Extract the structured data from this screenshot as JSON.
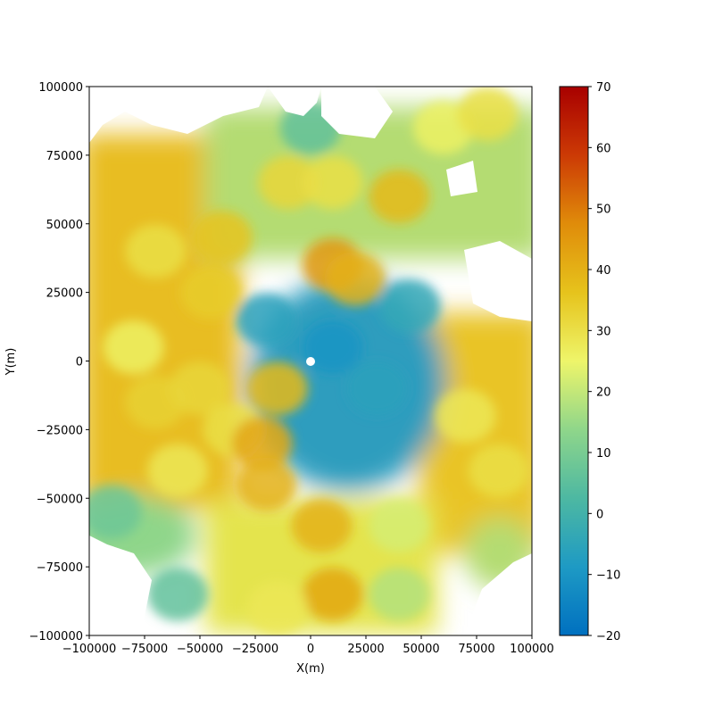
{
  "chart_data": {
    "type": "heatmap",
    "title": "",
    "xlabel": "X(m)",
    "ylabel": "Y(m)",
    "xlim": [
      -100000,
      100000
    ],
    "ylim": [
      -100000,
      100000
    ],
    "x_ticks": [
      -100000,
      -75000,
      -50000,
      -25000,
      0,
      25000,
      50000,
      75000,
      100000
    ],
    "x_tick_labels": [
      "−100000",
      "−75000",
      "−50000",
      "−25000",
      "0",
      "25000",
      "50000",
      "75000",
      "100000"
    ],
    "y_ticks": [
      -100000,
      -75000,
      -50000,
      -25000,
      0,
      25000,
      50000,
      75000,
      100000
    ],
    "y_tick_labels": [
      "−100000",
      "−75000",
      "−50000",
      "−25000",
      "0",
      "25000",
      "50000",
      "75000",
      "100000"
    ],
    "colorbar": {
      "range": [
        -20,
        70
      ],
      "ticks": [
        -20,
        -10,
        0,
        10,
        20,
        30,
        40,
        50,
        60,
        70
      ],
      "tick_labels": [
        "−20",
        "−10",
        "0",
        "10",
        "20",
        "30",
        "40",
        "50",
        "60",
        "70"
      ],
      "colormap": [
        "#0070c0",
        "#1e9ac4",
        "#4db8a2",
        "#8fd68a",
        "#eef56a",
        "#e6c31c",
        "#e08c0a",
        "#cc3a05",
        "#a80000"
      ]
    },
    "grid": false,
    "regions": [
      {
        "x": -70000,
        "y": 40000,
        "value": 30
      },
      {
        "x": -40000,
        "y": 45000,
        "value": 36
      },
      {
        "x": -45000,
        "y": 25000,
        "value": 34
      },
      {
        "x": -80000,
        "y": 5000,
        "value": 26
      },
      {
        "x": -70000,
        "y": -15000,
        "value": 33
      },
      {
        "x": -50000,
        "y": -10000,
        "value": 32
      },
      {
        "x": -35000,
        "y": -25000,
        "value": 30
      },
      {
        "x": -60000,
        "y": -40000,
        "value": 28
      },
      {
        "x": -22000,
        "y": -30000,
        "value": 42
      },
      {
        "x": -20000,
        "y": -45000,
        "value": 40
      },
      {
        "x": -15000,
        "y": -10000,
        "value": 38
      },
      {
        "x": 5000,
        "y": -60000,
        "value": 40
      },
      {
        "x": 10000,
        "y": -85000,
        "value": 42
      },
      {
        "x": -15000,
        "y": -90000,
        "value": 28
      },
      {
        "x": 10000,
        "y": 35000,
        "value": 45
      },
      {
        "x": 20000,
        "y": 30000,
        "value": 40
      },
      {
        "x": -10000,
        "y": 65000,
        "value": 32
      },
      {
        "x": 10000,
        "y": 65000,
        "value": 30
      },
      {
        "x": 40000,
        "y": 60000,
        "value": 38
      },
      {
        "x": 60000,
        "y": 85000,
        "value": 26
      },
      {
        "x": 80000,
        "y": 90000,
        "value": 30
      },
      {
        "x": 70000,
        "y": -20000,
        "value": 28
      },
      {
        "x": 85000,
        "y": -40000,
        "value": 30
      },
      {
        "x": 40000,
        "y": -60000,
        "value": 22
      },
      {
        "x": 40000,
        "y": -85000,
        "value": 18
      },
      {
        "x": -90000,
        "y": -55000,
        "value": 8
      },
      {
        "x": -60000,
        "y": -85000,
        "value": 6
      },
      {
        "x": 10000,
        "y": 5000,
        "value": -10
      },
      {
        "x": 30000,
        "y": -10000,
        "value": -6
      },
      {
        "x": 45000,
        "y": 20000,
        "value": -4
      },
      {
        "x": -20000,
        "y": 15000,
        "value": -6
      },
      {
        "x": 0,
        "y": 85000,
        "value": 6
      }
    ]
  }
}
